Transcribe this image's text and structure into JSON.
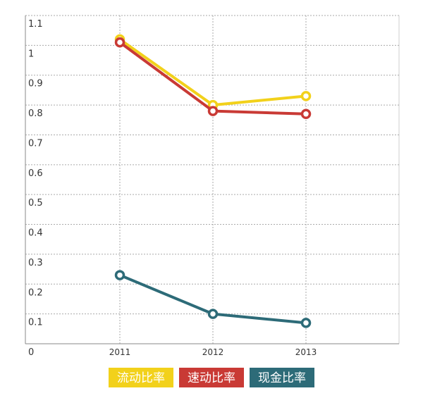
{
  "chart_data": {
    "type": "line",
    "title": "",
    "xlabel": "",
    "ylabel": "",
    "x": [
      "2011",
      "2012",
      "2013"
    ],
    "ylim": [
      0,
      1.1
    ],
    "yticks": [
      {
        "value": 1.1,
        "label": "1.1"
      },
      {
        "value": 1.0,
        "label": "1"
      },
      {
        "value": 0.9,
        "label": "0.9"
      },
      {
        "value": 0.8,
        "label": "0.8"
      },
      {
        "value": 0.7,
        "label": "0.7"
      },
      {
        "value": 0.6,
        "label": "0.6"
      },
      {
        "value": 0.5,
        "label": "0.5"
      },
      {
        "value": 0.4,
        "label": "0.4"
      },
      {
        "value": 0.3,
        "label": "0.3"
      },
      {
        "value": 0.2,
        "label": "0.2"
      },
      {
        "value": 0.1,
        "label": "0.1"
      },
      {
        "value": 0.0,
        "label": "0"
      }
    ],
    "grid": true,
    "legend_position": "bottom",
    "series": [
      {
        "name": "流动比率",
        "color": "#f2d11b",
        "values": [
          1.02,
          0.8,
          0.83
        ]
      },
      {
        "name": "速动比率",
        "color": "#c93a35",
        "values": [
          1.01,
          0.78,
          0.77
        ]
      },
      {
        "name": "现金比率",
        "color": "#2d6b78",
        "values": [
          0.23,
          0.1,
          0.07
        ]
      }
    ]
  }
}
